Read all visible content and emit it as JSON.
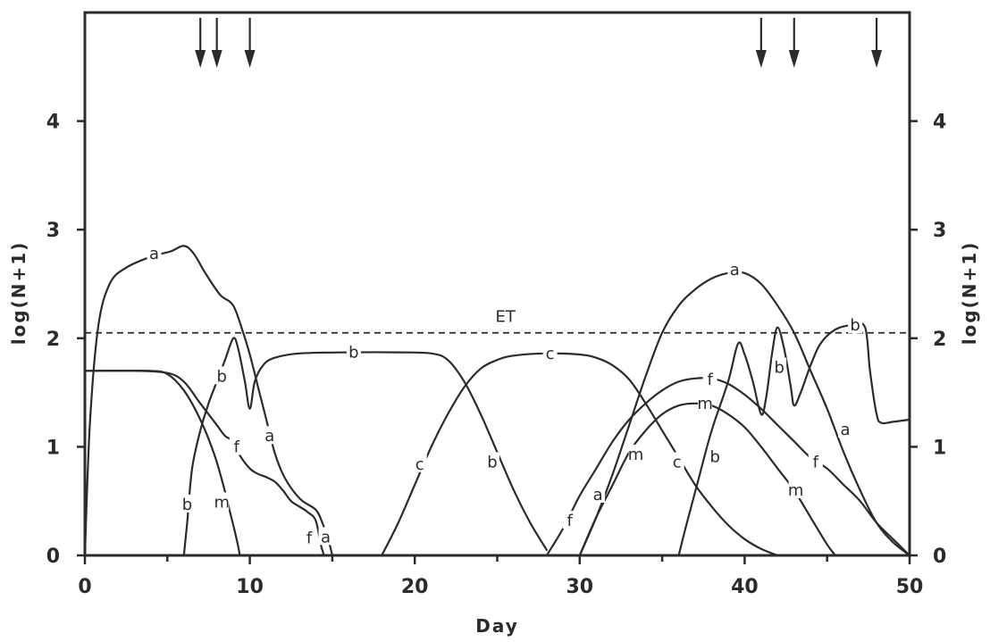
{
  "chart_data": {
    "type": "line",
    "xlabel": "Day",
    "ylabel": "log(N+1)",
    "ylabel_right": "log(N+1)",
    "xlim": [
      0,
      50
    ],
    "ylim": [
      0,
      5
    ],
    "x_ticks": [
      0,
      10,
      20,
      30,
      40,
      50
    ],
    "y_ticks": [
      0,
      1,
      2,
      3,
      4
    ],
    "grid": false,
    "reference_line": {
      "label": "ET",
      "y": 2.05
    },
    "arrows_at_day": [
      7,
      8,
      10,
      41,
      43,
      48
    ],
    "series": [
      {
        "name": "a",
        "segments": [
          [
            [
              0,
              0
            ],
            [
              0.3,
              1.2
            ],
            [
              0.8,
              2.1
            ],
            [
              1.5,
              2.5
            ],
            [
              2.5,
              2.65
            ],
            [
              4,
              2.75
            ],
            [
              5.2,
              2.8
            ],
            [
              6,
              2.85
            ],
            [
              6.6,
              2.78
            ],
            [
              7.3,
              2.6
            ],
            [
              8.2,
              2.4
            ],
            [
              9,
              2.3
            ],
            [
              9.6,
              2.05
            ],
            [
              10,
              1.85
            ],
            [
              10.5,
              1.55
            ],
            [
              11,
              1.25
            ],
            [
              11.5,
              0.95
            ],
            [
              12,
              0.75
            ],
            [
              12.6,
              0.6
            ],
            [
              13.2,
              0.5
            ],
            [
              14,
              0.42
            ],
            [
              14.4,
              0.3
            ],
            [
              14.8,
              0.12
            ],
            [
              15,
              0
            ]
          ],
          [
            [
              30,
              0
            ],
            [
              31,
              0.35
            ],
            [
              32,
              0.75
            ],
            [
              33,
              1.2
            ],
            [
              34,
              1.65
            ],
            [
              35,
              2.05
            ],
            [
              36,
              2.3
            ],
            [
              37,
              2.45
            ],
            [
              38,
              2.55
            ],
            [
              39,
              2.6
            ],
            [
              40,
              2.6
            ],
            [
              41,
              2.5
            ],
            [
              42,
              2.3
            ],
            [
              43,
              2.05
            ],
            [
              44,
              1.7
            ],
            [
              45,
              1.35
            ],
            [
              46,
              0.95
            ],
            [
              47,
              0.6
            ],
            [
              48,
              0.3
            ],
            [
              49,
              0.12
            ],
            [
              50,
              0
            ]
          ]
        ]
      },
      {
        "name": "b",
        "segments": [
          [
            [
              6,
              0
            ],
            [
              6.2,
              0.3
            ],
            [
              6.5,
              0.8
            ],
            [
              7,
              1.15
            ],
            [
              7.5,
              1.4
            ],
            [
              8,
              1.6
            ],
            [
              8.5,
              1.8
            ],
            [
              9,
              2.0
            ],
            [
              9.3,
              1.9
            ],
            [
              9.7,
              1.6
            ],
            [
              10,
              1.35
            ],
            [
              10.3,
              1.6
            ],
            [
              10.8,
              1.75
            ],
            [
              11.5,
              1.82
            ],
            [
              13,
              1.86
            ],
            [
              16,
              1.87
            ],
            [
              19,
              1.87
            ],
            [
              21,
              1.86
            ],
            [
              22,
              1.8
            ],
            [
              23,
              1.6
            ],
            [
              24,
              1.3
            ],
            [
              25,
              0.95
            ],
            [
              26,
              0.6
            ],
            [
              27,
              0.3
            ],
            [
              28,
              0.05
            ]
          ],
          [
            [
              36,
              0
            ],
            [
              36.5,
              0.3
            ],
            [
              37.2,
              0.7
            ],
            [
              38,
              1.15
            ],
            [
              39,
              1.6
            ],
            [
              39.6,
              1.95
            ],
            [
              40,
              1.85
            ],
            [
              40.5,
              1.6
            ],
            [
              41,
              1.3
            ],
            [
              41.3,
              1.45
            ],
            [
              41.7,
              1.9
            ],
            [
              42,
              2.1
            ],
            [
              42.4,
              1.9
            ],
            [
              42.8,
              1.55
            ],
            [
              43,
              1.38
            ],
            [
              43.4,
              1.5
            ],
            [
              44,
              1.75
            ],
            [
              44.6,
              1.95
            ],
            [
              45.5,
              2.08
            ],
            [
              46.5,
              2.12
            ],
            [
              47.3,
              2.1
            ],
            [
              47.6,
              1.7
            ],
            [
              48,
              1.3
            ],
            [
              48.3,
              1.22
            ],
            [
              49,
              1.23
            ],
            [
              50,
              1.25
            ]
          ]
        ]
      },
      {
        "name": "c",
        "segments": [
          [
            [
              18,
              0
            ],
            [
              19,
              0.3
            ],
            [
              20,
              0.65
            ],
            [
              21,
              1.0
            ],
            [
              22,
              1.3
            ],
            [
              23,
              1.55
            ],
            [
              24,
              1.72
            ],
            [
              25,
              1.8
            ],
            [
              26,
              1.84
            ],
            [
              28,
              1.86
            ],
            [
              30,
              1.85
            ],
            [
              31,
              1.82
            ],
            [
              32,
              1.75
            ],
            [
              33,
              1.62
            ],
            [
              34,
              1.4
            ],
            [
              35,
              1.15
            ],
            [
              36,
              0.9
            ],
            [
              37,
              0.65
            ],
            [
              38,
              0.45
            ],
            [
              39,
              0.28
            ],
            [
              40,
              0.15
            ],
            [
              41,
              0.06
            ],
            [
              42,
              0
            ]
          ]
        ]
      },
      {
        "name": "f",
        "segments": [
          [
            [
              0,
              1.7
            ],
            [
              3,
              1.7
            ],
            [
              5,
              1.68
            ],
            [
              6,
              1.6
            ],
            [
              7,
              1.4
            ],
            [
              8,
              1.2
            ],
            [
              8.5,
              1.1
            ],
            [
              9,
              1.05
            ],
            [
              9.4,
              0.92
            ],
            [
              10,
              0.8
            ],
            [
              10.5,
              0.75
            ],
            [
              11,
              0.72
            ],
            [
              11.5,
              0.68
            ],
            [
              12,
              0.6
            ],
            [
              12.5,
              0.5
            ],
            [
              13,
              0.45
            ],
            [
              13.5,
              0.4
            ],
            [
              14,
              0.32
            ],
            [
              14.3,
              0.1
            ],
            [
              14.5,
              0
            ]
          ],
          [
            [
              28,
              0
            ],
            [
              29,
              0.25
            ],
            [
              30,
              0.55
            ],
            [
              31,
              0.8
            ],
            [
              32,
              1.05
            ],
            [
              33,
              1.25
            ],
            [
              34,
              1.4
            ],
            [
              35,
              1.52
            ],
            [
              36,
              1.6
            ],
            [
              37,
              1.63
            ],
            [
              38,
              1.63
            ],
            [
              39,
              1.58
            ],
            [
              40,
              1.48
            ],
            [
              41,
              1.35
            ],
            [
              42,
              1.2
            ],
            [
              43,
              1.05
            ],
            [
              44,
              0.9
            ],
            [
              45,
              0.8
            ],
            [
              46,
              0.65
            ],
            [
              47,
              0.5
            ],
            [
              48,
              0.3
            ],
            [
              49,
              0.15
            ],
            [
              50,
              0
            ]
          ]
        ]
      },
      {
        "name": "m",
        "segments": [
          [
            [
              0,
              1.7
            ],
            [
              2,
              1.7
            ],
            [
              4,
              1.7
            ],
            [
              5,
              1.67
            ],
            [
              6,
              1.52
            ],
            [
              7,
              1.25
            ],
            [
              7.8,
              0.95
            ],
            [
              8.3,
              0.7
            ],
            [
              8.8,
              0.4
            ],
            [
              9.2,
              0.15
            ],
            [
              9.4,
              0
            ]
          ],
          [
            [
              30,
              0
            ],
            [
              31,
              0.35
            ],
            [
              32,
              0.65
            ],
            [
              33,
              0.95
            ],
            [
              34,
              1.15
            ],
            [
              35,
              1.3
            ],
            [
              36,
              1.38
            ],
            [
              37,
              1.4
            ],
            [
              38,
              1.38
            ],
            [
              39,
              1.3
            ],
            [
              40,
              1.18
            ],
            [
              41,
              1.0
            ],
            [
              42,
              0.8
            ],
            [
              43,
              0.6
            ],
            [
              44,
              0.35
            ],
            [
              45,
              0.1
            ],
            [
              45.5,
              0
            ]
          ]
        ]
      }
    ],
    "curve_labels": [
      {
        "text": "a",
        "x": 4.2,
        "y": 2.78
      },
      {
        "text": "a",
        "x": 11.2,
        "y": 1.1
      },
      {
        "text": "a",
        "x": 14.6,
        "y": 0.17
      },
      {
        "text": "a",
        "x": 31.1,
        "y": 0.56
      },
      {
        "text": "a",
        "x": 39.4,
        "y": 2.63
      },
      {
        "text": "a",
        "x": 46.1,
        "y": 1.16
      },
      {
        "text": "b",
        "x": 8.3,
        "y": 1.65
      },
      {
        "text": "b",
        "x": 6.2,
        "y": 0.47
      },
      {
        "text": "b",
        "x": 16.3,
        "y": 1.87
      },
      {
        "text": "b",
        "x": 24.7,
        "y": 0.86
      },
      {
        "text": "b",
        "x": 38.2,
        "y": 0.91
      },
      {
        "text": "b",
        "x": 42.1,
        "y": 1.73
      },
      {
        "text": "b",
        "x": 46.7,
        "y": 2.12
      },
      {
        "text": "c",
        "x": 20.3,
        "y": 0.84
      },
      {
        "text": "c",
        "x": 28.2,
        "y": 1.86
      },
      {
        "text": "c",
        "x": 35.9,
        "y": 0.86
      },
      {
        "text": "f",
        "x": 9.2,
        "y": 1.0
      },
      {
        "text": "f",
        "x": 13.6,
        "y": 0.16
      },
      {
        "text": "f",
        "x": 29.4,
        "y": 0.32
      },
      {
        "text": "f",
        "x": 37.9,
        "y": 1.62
      },
      {
        "text": "f",
        "x": 44.3,
        "y": 0.86
      },
      {
        "text": "m",
        "x": 8.3,
        "y": 0.49
      },
      {
        "text": "m",
        "x": 33.4,
        "y": 0.93
      },
      {
        "text": "m",
        "x": 37.6,
        "y": 1.4
      },
      {
        "text": "m",
        "x": 43.1,
        "y": 0.6
      }
    ]
  }
}
